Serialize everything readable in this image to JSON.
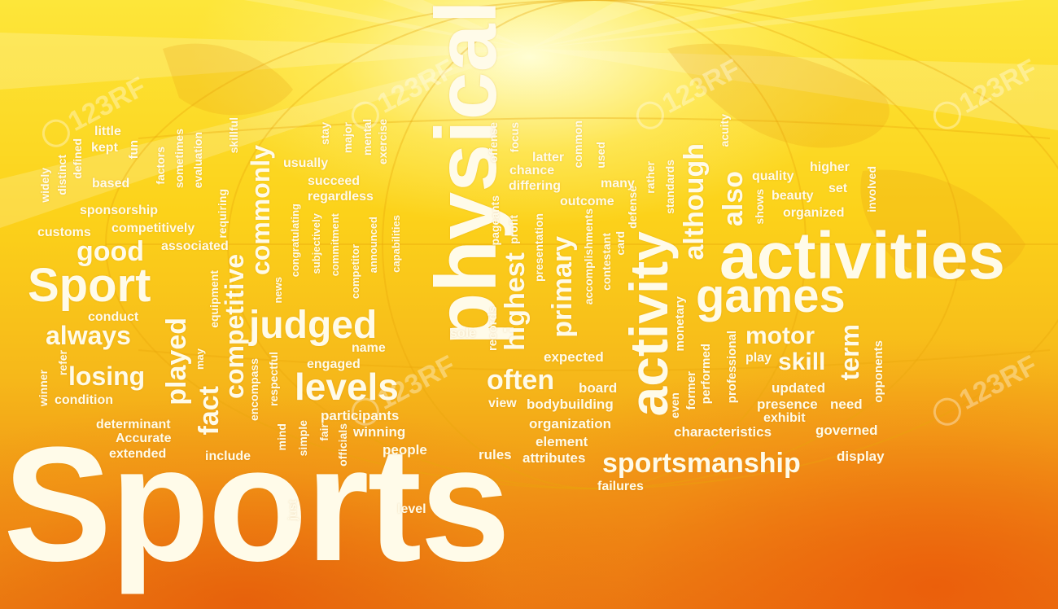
{
  "watermark": "123RF",
  "words": {
    "sports": "Sports",
    "physical": "physical",
    "activities": "activities",
    "activity": "activity",
    "games": "games",
    "sport": "Sport",
    "judged": "judged",
    "levels": "levels",
    "sportsmanship": "sportsmanship",
    "good": "good",
    "always": "always",
    "losing": "losing",
    "played": "played",
    "fact": "fact",
    "competitive": "competitive",
    "commonly": "commonly",
    "although": "although",
    "also": "also",
    "motor": "motor",
    "skill": "skill",
    "term": "term",
    "often": "often",
    "highest": "highest",
    "primary": "primary",
    "participants": "participants",
    "winning": "winning",
    "people": "people",
    "engaged": "engaged",
    "name": "name",
    "sole": "sole",
    "records": "records",
    "expected": "expected",
    "board": "board",
    "view": "view",
    "bodybuilding": "bodybuilding",
    "organization": "organization",
    "element": "element",
    "rules": "rules",
    "attributes": "attributes",
    "failures": "failures",
    "level": "level",
    "just": "just",
    "characteristics": "characteristics",
    "governed": "governed",
    "display": "display",
    "presence": "presence",
    "need": "need",
    "exhibit": "exhibit",
    "updated": "updated",
    "play": "play",
    "opponents": "opponents",
    "professional": "professional",
    "performed": "performed",
    "former": "former",
    "monetary": "monetary",
    "even": "even",
    "little": "little",
    "kept": "kept",
    "fun": "fun",
    "based": "based",
    "defined": "defined",
    "distinct": "distinct",
    "widely": "widely",
    "factors": "factors",
    "sometimes": "sometimes",
    "evaluation": "evaluation",
    "skillful": "skillful",
    "sponsorship": "sponsorship",
    "customs": "customs",
    "competitively": "competitively",
    "associated": "associated",
    "requiring": "requiring",
    "equipment": "equipment",
    "may": "may",
    "conduct": "conduct",
    "refer": "refer",
    "winner": "winner",
    "condition": "condition",
    "determinant": "determinant",
    "accurate": "Accurate",
    "extended": "extended",
    "include": "include",
    "encompass": "encompass",
    "respectful": "respectful",
    "mind": "mind",
    "simple": "simple",
    "fair": "fair",
    "officials": "officials",
    "news": "news",
    "congratulating": "congratulating",
    "subjectively": "subjectively",
    "commitment": "commitment",
    "competitor": "competitor",
    "announced": "announced",
    "capabilities": "capabilities",
    "usually": "usually",
    "stay": "stay",
    "major": "major",
    "mental": "mental",
    "exercise": "exercise",
    "succeed": "succeed",
    "regardless": "regardless",
    "offense": "offense",
    "focus": "focus",
    "pageants": "pageants",
    "profit": "profit",
    "chance": "chance",
    "differing": "differing",
    "latter": "latter",
    "common": "common",
    "used": "used",
    "outcome": "outcome",
    "many": "many",
    "presentation": "presentation",
    "accomplishments": "accomplishments",
    "contestant": "contestant",
    "card": "card",
    "defense": "defense",
    "rather": "rather",
    "standards": "standards",
    "acuity": "acuity",
    "quality": "quality",
    "higher": "higher",
    "set": "set",
    "shows": "shows",
    "beauty": "beauty",
    "organized": "organized",
    "involved": "involved"
  }
}
